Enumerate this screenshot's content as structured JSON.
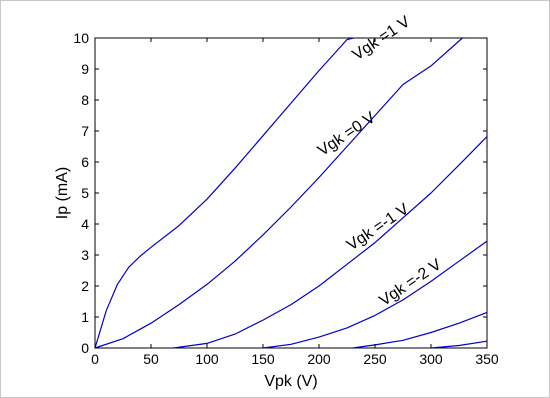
{
  "chart_data": {
    "type": "line",
    "xlabel": "Vpk (V)",
    "ylabel": "Ip (mA)",
    "xlim": [
      0,
      350
    ],
    "ylim": [
      0,
      10
    ],
    "xticks": [
      0,
      50,
      100,
      150,
      200,
      250,
      300,
      350
    ],
    "yticks": [
      0,
      1,
      2,
      3,
      4,
      5,
      6,
      7,
      8,
      9,
      10
    ],
    "grid": false,
    "line_color": "#0000cc",
    "series": [
      {
        "name": "Vgk =1 V",
        "x": [
          0,
          10,
          20,
          30,
          40,
          50,
          75,
          100,
          125,
          150,
          175,
          200,
          225,
          231
        ],
        "y": [
          0,
          1.2,
          2.05,
          2.6,
          2.95,
          3.25,
          3.95,
          4.8,
          5.8,
          6.85,
          7.9,
          8.95,
          9.95,
          10.0
        ]
      },
      {
        "name": "Vgk =0 V",
        "x": [
          0,
          25,
          50,
          75,
          100,
          125,
          150,
          175,
          200,
          225,
          250,
          275,
          300,
          328
        ],
        "y": [
          0,
          0.3,
          0.8,
          1.4,
          2.05,
          2.8,
          3.65,
          4.55,
          5.5,
          6.5,
          7.5,
          8.5,
          9.1,
          10.0
        ]
      },
      {
        "name": "Vgk =-1 V",
        "x": [
          70,
          100,
          125,
          150,
          175,
          200,
          225,
          250,
          275,
          300,
          325,
          350
        ],
        "y": [
          0,
          0.15,
          0.45,
          0.9,
          1.4,
          2.0,
          2.7,
          3.4,
          4.2,
          5.0,
          5.9,
          6.82
        ]
      },
      {
        "name": "Vgk =-2 V",
        "x": [
          150,
          175,
          200,
          225,
          250,
          275,
          300,
          325,
          350
        ],
        "y": [
          0,
          0.12,
          0.35,
          0.65,
          1.05,
          1.55,
          2.15,
          2.8,
          3.45
        ]
      },
      {
        "name": "",
        "x": [
          230,
          250,
          275,
          300,
          325,
          350
        ],
        "y": [
          0,
          0.1,
          0.25,
          0.5,
          0.8,
          1.15
        ]
      },
      {
        "name": "",
        "x": [
          300,
          325,
          350
        ],
        "y": [
          0,
          0.08,
          0.22
        ]
      }
    ],
    "curve_labels": [
      {
        "text": "Vgk =1 V",
        "at_x": 258,
        "at_y": 9.86
      },
      {
        "text": "Vgk =0 V",
        "at_x": 227,
        "at_y": 6.77
      },
      {
        "text": "Vgk =-1 V",
        "at_x": 255,
        "at_y": 3.77
      },
      {
        "text": "Vgk =-2 V",
        "at_x": 284,
        "at_y": 1.98
      }
    ]
  }
}
